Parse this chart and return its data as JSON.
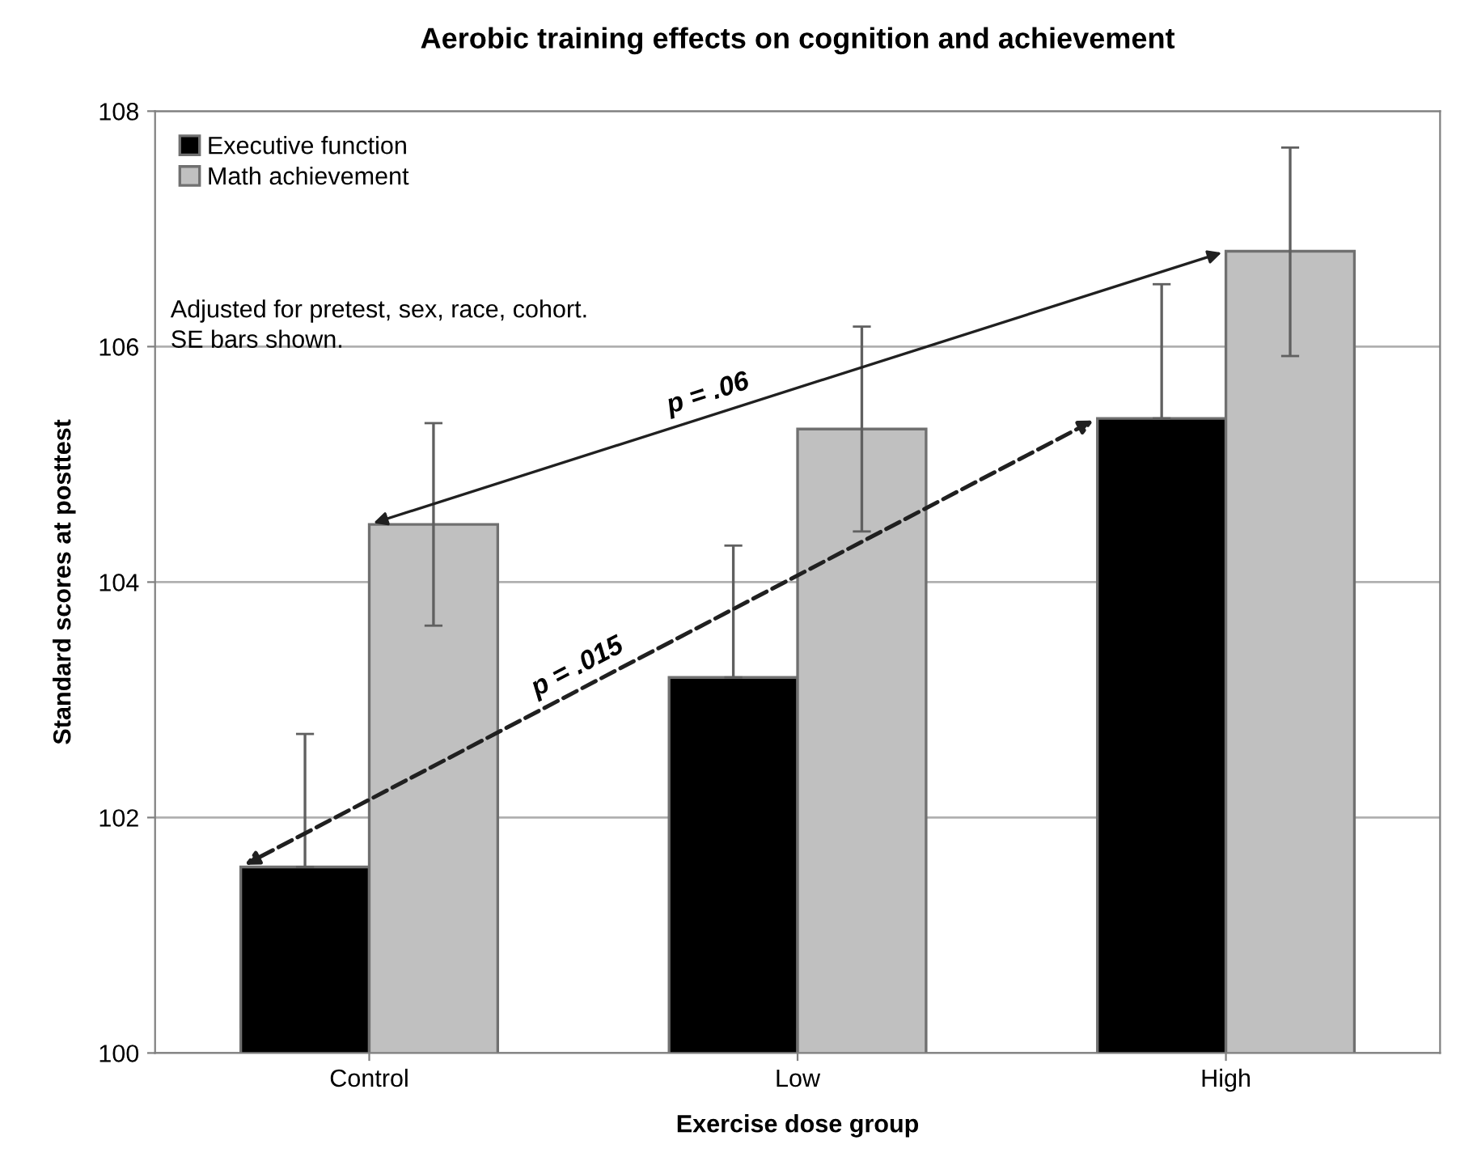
{
  "chart_data": {
    "type": "bar",
    "title": "Aerobic training effects on cognition and achievement",
    "xlabel": "Exercise dose group",
    "ylabel": "Standard scores at posttest",
    "categories": [
      "Control",
      "Low",
      "High"
    ],
    "series": [
      {
        "name": "Executive function",
        "color": "#000000",
        "values": [
          101.58,
          103.19,
          105.39
        ],
        "errors": [
          [
            101.58,
            102.71
          ],
          [
            103.19,
            104.31
          ],
          [
            105.39,
            106.53
          ]
        ]
      },
      {
        "name": "Math achievement",
        "color": "#c0c0c0",
        "values": [
          104.49,
          105.3,
          106.81
        ],
        "errors": [
          [
            103.63,
            105.35
          ],
          [
            104.43,
            106.17
          ],
          [
            105.92,
            107.69
          ]
        ]
      }
    ],
    "annotations": [
      "p = .015",
      "p = .06",
      "Adjusted for pretest, sex, race, cohort.\nSE bars shown."
    ],
    "ylim": [
      100,
      108
    ],
    "yticks": [
      100,
      102,
      104,
      106,
      108
    ],
    "grid": "y",
    "legend": "top left"
  }
}
